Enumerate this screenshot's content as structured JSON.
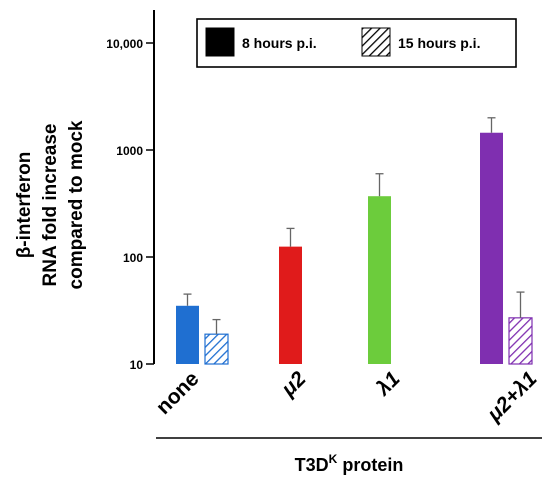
{
  "chart_data": {
    "type": "bar",
    "y_scale": "log",
    "ylim": [
      10,
      15000
    ],
    "y_ticks": [
      {
        "value": 10,
        "label": "10"
      },
      {
        "value": 100,
        "label": "100"
      },
      {
        "value": 1000,
        "label": "1000"
      },
      {
        "value": 10000,
        "label": "10,000"
      }
    ],
    "ylabel_lines": [
      "β-interferon",
      "RNA fold increase",
      "compared to mock"
    ],
    "xlabel_main": "T3D",
    "xlabel_sup": "K",
    "xlabel_tail": " protein",
    "categories": [
      "none",
      "μ2",
      "λ1",
      "μ2+λ1"
    ],
    "series": [
      {
        "name": "8 hours p.i.",
        "pattern": "solid",
        "values": [
          35,
          125,
          370,
          1450
        ],
        "errors": [
          45,
          185,
          600,
          2000
        ],
        "colors": [
          "#1f6fd1",
          "#e01b1b",
          "#6ccc3c",
          "#7f2fb0"
        ]
      },
      {
        "name": "15 hours p.i.",
        "pattern": "hatched",
        "values": [
          19,
          null,
          null,
          27
        ],
        "errors": [
          26,
          null,
          null,
          47
        ],
        "colors": [
          "#1f6fd1",
          "#e01b1b",
          "#6ccc3c",
          "#7f2fb0"
        ]
      }
    ],
    "legend": {
      "position": "top-right",
      "items": [
        {
          "label": "8 hours p.i.",
          "pattern": "solid",
          "color": "#000000"
        },
        {
          "label": "15 hours p.i.",
          "pattern": "hatched",
          "color": "#000000"
        }
      ]
    },
    "grid": false
  }
}
